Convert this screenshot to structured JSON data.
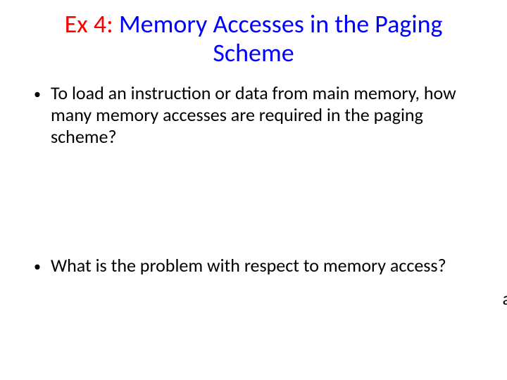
{
  "title": {
    "prefix": "Ex 4: ",
    "rest_line1": "Memory Accesses in the Paging",
    "rest_line2": "Scheme",
    "prefix_color": "#ff0000",
    "rest_color": "#0000ff",
    "fontsize": 36
  },
  "bullets": [
    {
      "marker": "•",
      "text": "To load an instruction or data from main memory, how many memory accesses are required in the paging scheme?"
    },
    {
      "marker": "•",
      "text": "What is the problem with respect to memory access?"
    }
  ],
  "body_fontsize": 26,
  "text_color": "#000000",
  "background_color": "#ffffff",
  "stray_char": "a"
}
